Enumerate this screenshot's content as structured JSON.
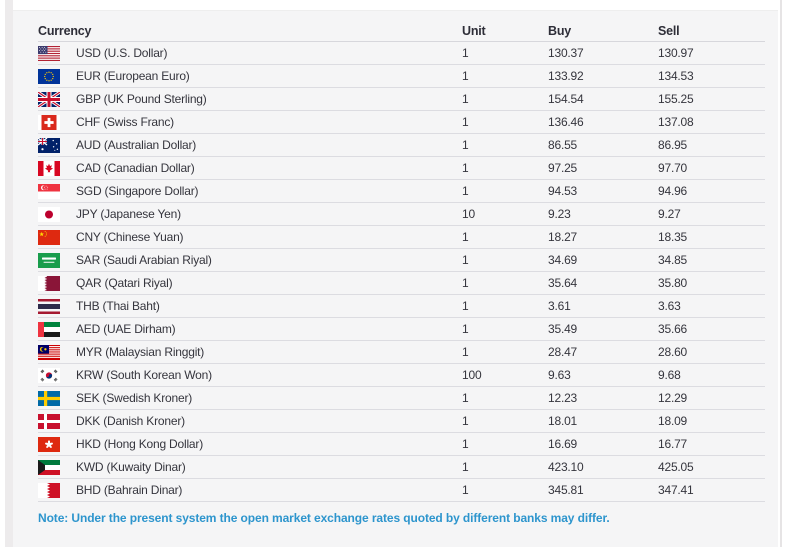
{
  "table": {
    "headers": {
      "currency": "Currency",
      "unit": "Unit",
      "buy": "Buy",
      "sell": "Sell"
    },
    "rows": [
      {
        "flag": "usd-flag-icon",
        "code": "usd",
        "currency": "USD (U.S. Dollar)",
        "unit": "1",
        "buy": "130.37",
        "sell": "130.97"
      },
      {
        "flag": "eur-flag-icon",
        "code": "eur",
        "currency": "EUR (European Euro)",
        "unit": "1",
        "buy": "133.92",
        "sell": "134.53"
      },
      {
        "flag": "gbp-flag-icon",
        "code": "gbp",
        "currency": "GBP (UK Pound Sterling)",
        "unit": "1",
        "buy": "154.54",
        "sell": "155.25"
      },
      {
        "flag": "chf-flag-icon",
        "code": "chf",
        "currency": "CHF (Swiss Franc)",
        "unit": "1",
        "buy": "136.46",
        "sell": "137.08"
      },
      {
        "flag": "aud-flag-icon",
        "code": "aud",
        "currency": "AUD (Australian Dollar)",
        "unit": "1",
        "buy": "86.55",
        "sell": "86.95"
      },
      {
        "flag": "cad-flag-icon",
        "code": "cad",
        "currency": "CAD (Canadian Dollar)",
        "unit": "1",
        "buy": "97.25",
        "sell": "97.70"
      },
      {
        "flag": "sgd-flag-icon",
        "code": "sgd",
        "currency": "SGD (Singapore Dollar)",
        "unit": "1",
        "buy": "94.53",
        "sell": "94.96"
      },
      {
        "flag": "jpy-flag-icon",
        "code": "jpy",
        "currency": "JPY (Japanese Yen)",
        "unit": "10",
        "buy": "9.23",
        "sell": "9.27"
      },
      {
        "flag": "cny-flag-icon",
        "code": "cny",
        "currency": "CNY (Chinese Yuan)",
        "unit": "1",
        "buy": "18.27",
        "sell": "18.35"
      },
      {
        "flag": "sar-flag-icon",
        "code": "sar",
        "currency": "SAR (Saudi Arabian Riyal)",
        "unit": "1",
        "buy": "34.69",
        "sell": "34.85"
      },
      {
        "flag": "qar-flag-icon",
        "code": "qar",
        "currency": "QAR (Qatari Riyal)",
        "unit": "1",
        "buy": "35.64",
        "sell": "35.80"
      },
      {
        "flag": "thb-flag-icon",
        "code": "thb",
        "currency": "THB (Thai Baht)",
        "unit": "1",
        "buy": "3.61",
        "sell": "3.63"
      },
      {
        "flag": "aed-flag-icon",
        "code": "aed",
        "currency": "AED (UAE Dirham)",
        "unit": "1",
        "buy": "35.49",
        "sell": "35.66"
      },
      {
        "flag": "myr-flag-icon",
        "code": "myr",
        "currency": "MYR (Malaysian Ringgit)",
        "unit": "1",
        "buy": "28.47",
        "sell": "28.60"
      },
      {
        "flag": "krw-flag-icon",
        "code": "krw",
        "currency": "KRW (South Korean Won)",
        "unit": "100",
        "buy": "9.63",
        "sell": "9.68"
      },
      {
        "flag": "sek-flag-icon",
        "code": "sek",
        "currency": "SEK (Swedish Kroner)",
        "unit": "1",
        "buy": "12.23",
        "sell": "12.29"
      },
      {
        "flag": "dkk-flag-icon",
        "code": "dkk",
        "currency": "DKK (Danish Kroner)",
        "unit": "1",
        "buy": "18.01",
        "sell": "18.09"
      },
      {
        "flag": "hkd-flag-icon",
        "code": "hkd",
        "currency": "HKD (Hong Kong Dollar)",
        "unit": "1",
        "buy": "16.69",
        "sell": "16.77"
      },
      {
        "flag": "kwd-flag-icon",
        "code": "kwd",
        "currency": "KWD (Kuwaity Dinar)",
        "unit": "1",
        "buy": "423.10",
        "sell": "425.05"
      },
      {
        "flag": "bhd-flag-icon",
        "code": "bhd",
        "currency": "BHD (Bahrain Dinar)",
        "unit": "1",
        "buy": "345.81",
        "sell": "347.41"
      }
    ]
  },
  "note": "Note: Under the present system the open market exchange rates quoted by different banks may differ.",
  "colors": {
    "note_blue": "#2d95cd",
    "text_dark": "#35353d",
    "separator": "#dcdce1",
    "card_bg": "#f5f5f6",
    "left_strip": "#edebec"
  }
}
